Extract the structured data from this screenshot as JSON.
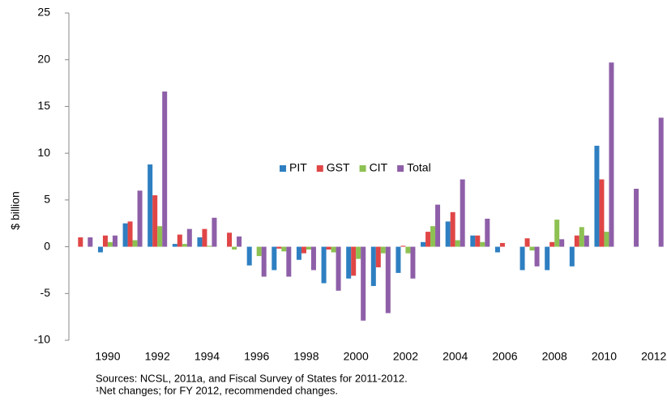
{
  "chart_data": {
    "type": "bar",
    "y_label": "$ billion",
    "categories": [
      null,
      "1990",
      null,
      "1992",
      null,
      "1994",
      null,
      "1996",
      null,
      "1998",
      null,
      "2000",
      null,
      "2002",
      null,
      "2004",
      null,
      "2006",
      null,
      "2008",
      null,
      "2010",
      null,
      "2012"
    ],
    "series": [
      {
        "name": "PIT",
        "color": "#2e7fc1",
        "values": [
          null,
          -0.6,
          2.5,
          8.8,
          0.3,
          1.0,
          null,
          -2.0,
          -2.5,
          -1.4,
          -3.9,
          -3.4,
          -4.2,
          -2.8,
          0.5,
          2.7,
          1.2,
          -0.6,
          -2.5,
          -2.5,
          -2.1,
          10.8,
          null,
          null
        ]
      },
      {
        "name": "GST",
        "color": "#e04646",
        "values": [
          1.0,
          1.2,
          2.7,
          5.5,
          1.3,
          1.9,
          1.5,
          null,
          -0.2,
          -0.7,
          -0.3,
          -3.1,
          -2.2,
          0.1,
          1.6,
          3.7,
          1.2,
          0.4,
          0.9,
          0.5,
          1.2,
          7.2,
          null,
          null
        ]
      },
      {
        "name": "CIT",
        "color": "#8dc152",
        "values": [
          null,
          0.5,
          0.7,
          2.2,
          0.3,
          0.1,
          -0.3,
          -1.0,
          -0.5,
          -0.3,
          -0.6,
          -1.3,
          -0.7,
          -0.7,
          2.2,
          0.7,
          0.5,
          null,
          -0.4,
          2.9,
          2.1,
          1.6,
          null,
          null
        ]
      },
      {
        "name": "Total",
        "color": "#8e5fa8",
        "values": [
          1.0,
          1.2,
          6.0,
          16.6,
          1.9,
          3.1,
          1.1,
          -3.2,
          -3.2,
          -2.5,
          -4.7,
          -7.9,
          -7.1,
          -3.4,
          4.5,
          7.2,
          3.0,
          null,
          -2.1,
          0.8,
          1.2,
          19.7,
          6.2,
          13.8
        ]
      }
    ],
    "ylim": [
      -10,
      25
    ],
    "yticks": [
      -10,
      -5,
      0,
      5,
      10,
      15,
      20,
      25
    ],
    "grid": false,
    "legend": "center",
    "notes": [
      "Sources:  NCSL,  2011a, and Fiscal Survey of States for 2011-2012.",
      "¹Net changes; for FY 2012, recommended changes."
    ]
  }
}
